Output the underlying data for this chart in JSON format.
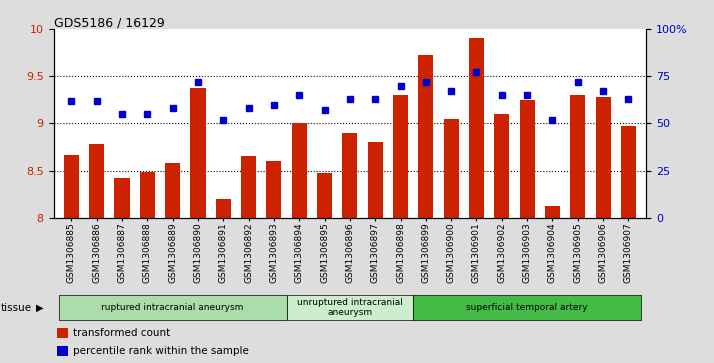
{
  "title": "GDS5186 / 16129",
  "samples": [
    "GSM1306885",
    "GSM1306886",
    "GSM1306887",
    "GSM1306888",
    "GSM1306889",
    "GSM1306890",
    "GSM1306891",
    "GSM1306892",
    "GSM1306893",
    "GSM1306894",
    "GSM1306895",
    "GSM1306896",
    "GSM1306897",
    "GSM1306898",
    "GSM1306899",
    "GSM1306900",
    "GSM1306901",
    "GSM1306902",
    "GSM1306903",
    "GSM1306904",
    "GSM1306905",
    "GSM1306906",
    "GSM1306907"
  ],
  "bar_values": [
    8.67,
    8.78,
    8.42,
    8.48,
    8.58,
    9.38,
    8.2,
    8.65,
    8.6,
    9.0,
    8.47,
    8.9,
    8.8,
    9.3,
    9.72,
    9.05,
    9.9,
    9.1,
    9.25,
    8.13,
    9.3,
    9.28,
    8.97
  ],
  "dot_values": [
    62,
    62,
    55,
    55,
    58,
    72,
    52,
    58,
    60,
    65,
    57,
    63,
    63,
    70,
    72,
    67,
    77,
    65,
    65,
    52,
    72,
    67,
    63
  ],
  "bar_color": "#cc2200",
  "dot_color": "#0000cc",
  "ylim_left": [
    8.0,
    10.0
  ],
  "ylim_right": [
    0,
    100
  ],
  "yticks_left": [
    8.0,
    8.5,
    9.0,
    9.5,
    10.0
  ],
  "yticks_right": [
    0,
    25,
    50,
    75,
    100
  ],
  "ytick_labels_right": [
    "0",
    "25",
    "50",
    "75",
    "100%"
  ],
  "grid_lines": [
    8.5,
    9.0,
    9.5
  ],
  "groups": [
    {
      "label": "ruptured intracranial aneurysm",
      "start": 0,
      "end": 8,
      "color": "#aaddaa"
    },
    {
      "label": "unruptured intracranial\naneurysm",
      "start": 9,
      "end": 13,
      "color": "#cceecc"
    },
    {
      "label": "superficial temporal artery",
      "start": 14,
      "end": 22,
      "color": "#44bb44"
    }
  ],
  "tissue_label": "tissue",
  "legend_bar_label": "transformed count",
  "legend_dot_label": "percentile rank within the sample",
  "bg_color": "#dddddd",
  "plot_bg_color": "#ffffff"
}
